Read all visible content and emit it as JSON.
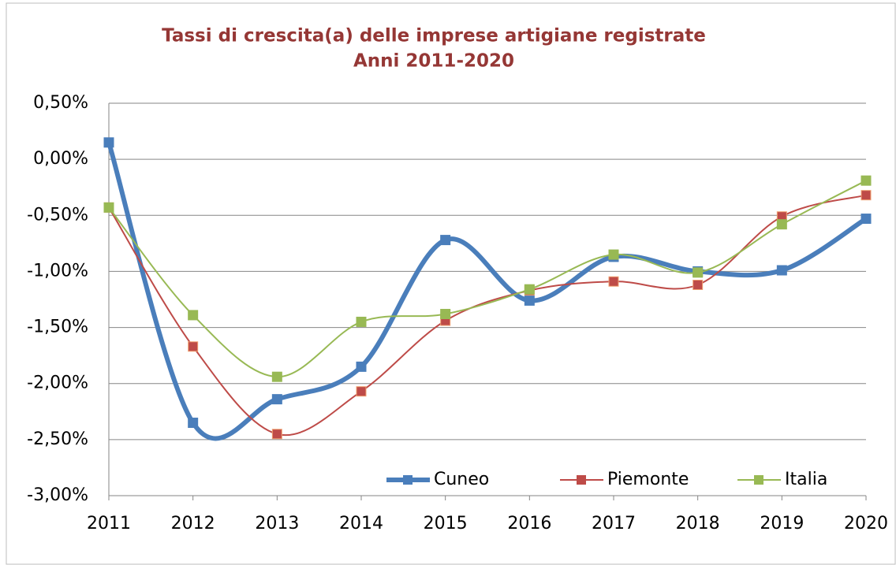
{
  "chart_data": {
    "type": "line",
    "title": [
      "Tassi di crescita(a) delle imprese artigiane registrate",
      "Anni 2011-2020"
    ],
    "categories": [
      "2011",
      "2012",
      "2013",
      "2014",
      "2015",
      "2016",
      "2017",
      "2018",
      "2019",
      "2020"
    ],
    "series": [
      {
        "name": "Cuneo",
        "color": "#4a7ebb",
        "values": [
          0.15,
          -2.35,
          -2.14,
          -1.85,
          -0.72,
          -1.26,
          -0.87,
          -1.0,
          -0.99,
          -0.53
        ]
      },
      {
        "name": "Piemonte",
        "color": "#be4b48",
        "values": [
          -0.43,
          -1.67,
          -2.45,
          -2.07,
          -1.44,
          -1.17,
          -1.09,
          -1.12,
          -0.51,
          -0.32
        ]
      },
      {
        "name": "Italia",
        "color": "#98b954",
        "values": [
          -0.43,
          -1.39,
          -1.94,
          -1.45,
          -1.38,
          -1.16,
          -0.85,
          -1.01,
          -0.58,
          -0.19
        ]
      }
    ],
    "ylim": [
      -3,
      0.5
    ],
    "yticks": [
      {
        "value": 0.5,
        "label": "0,50%"
      },
      {
        "value": 0,
        "label": "0,00%"
      },
      {
        "value": -0.5,
        "label": "-0,50%"
      },
      {
        "value": -1,
        "label": "-1,00%"
      },
      {
        "value": -1.5,
        "label": "-1,50%"
      },
      {
        "value": -2,
        "label": "-2,00%"
      },
      {
        "value": -2.5,
        "label": "-2,50%"
      },
      {
        "value": -3,
        "label": "-3,00%"
      }
    ],
    "grid": true,
    "smooth": true,
    "legend": "bottom-right"
  }
}
